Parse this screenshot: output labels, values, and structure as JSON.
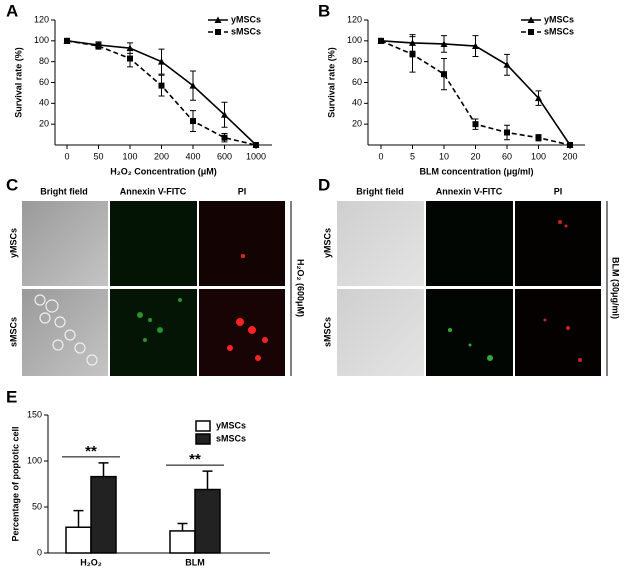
{
  "panel_labels": [
    "A",
    "B",
    "C",
    "D",
    "E"
  ],
  "images": [
    {
      "columns": [
        "Bright field",
        "Annexin V-FITC",
        "PI"
      ],
      "rows": [
        "yMSCs",
        "sMSCs"
      ],
      "treatment": "H₂O₂ (600μM)"
    },
    {
      "columns": [
        "Bright field",
        "Annexin V-FITC",
        "PI"
      ],
      "rows": [
        "yMSCs",
        "sMSCs"
      ],
      "treatment": "BLM (30μg/ml)"
    }
  ],
  "chart_data": [
    {
      "type": "line",
      "y_label": "Survival rate (%)",
      "x_label": "H₂O₂ Concentration (μM)",
      "categories": [
        "0",
        "50",
        "100",
        "200",
        "400",
        "600",
        "1000"
      ],
      "ylim": [
        0,
        120
      ],
      "yticks": [
        20,
        40,
        60,
        80,
        100,
        120
      ],
      "legend": "top-right",
      "series": [
        {
          "name": "yMSCs",
          "color": "#000000",
          "marker": "triangle",
          "line_style": "solid",
          "values": [
            100,
            96,
            93,
            80,
            57,
            29,
            0
          ],
          "errors": [
            0,
            3,
            5,
            12,
            14,
            12,
            0
          ]
        },
        {
          "name": "sMSCs",
          "color": "#000000",
          "marker": "square",
          "line_style": "dashed",
          "values": [
            100,
            95,
            83,
            57,
            23,
            7,
            0
          ],
          "errors": [
            0,
            3,
            8,
            10,
            10,
            4,
            0
          ]
        }
      ]
    },
    {
      "type": "line",
      "y_label": "Survival rate (%)",
      "x_label": "BLM concentration  (μg/ml)",
      "categories": [
        "0",
        "5",
        "10",
        "20",
        "60",
        "100",
        "200"
      ],
      "ylim": [
        0,
        120
      ],
      "yticks": [
        20,
        40,
        60,
        80,
        100,
        120
      ],
      "legend": "top-right",
      "series": [
        {
          "name": "yMSCs",
          "color": "#000000",
          "marker": "triangle",
          "line_style": "solid",
          "values": [
            100,
            98,
            97,
            95,
            77,
            45,
            0
          ],
          "errors": [
            0,
            8,
            8,
            10,
            10,
            7,
            0
          ]
        },
        {
          "name": "sMSCs",
          "color": "#000000",
          "marker": "square",
          "line_style": "dashed",
          "values": [
            100,
            87,
            68,
            20,
            12,
            7,
            0
          ],
          "errors": [
            0,
            17,
            15,
            5,
            7,
            3,
            0
          ]
        }
      ]
    },
    {
      "type": "bar",
      "y_label": "Percentage of poptotic cell",
      "categories": [
        "H₂O₂",
        "BLM"
      ],
      "annotations": [
        "**",
        "**"
      ],
      "ylim": [
        0,
        150
      ],
      "yticks": [
        0,
        50,
        100,
        150
      ],
      "legend": "top-right",
      "series": [
        {
          "name": "yMSCs",
          "color": "#ffffff",
          "values": [
            28,
            24
          ],
          "errors": [
            18,
            8
          ]
        },
        {
          "name": "sMSCs",
          "color": "#222222",
          "values": [
            83,
            69
          ],
          "errors": [
            15,
            20
          ]
        }
      ]
    }
  ]
}
